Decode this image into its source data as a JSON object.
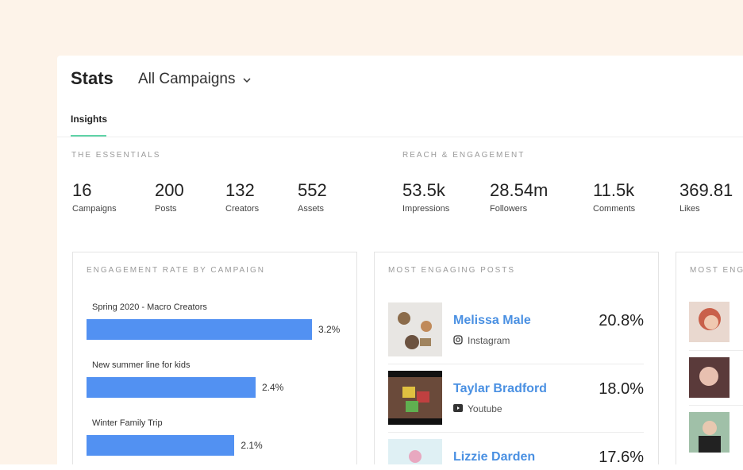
{
  "header": {
    "title": "Stats",
    "filter": "All Campaigns"
  },
  "tabs": [
    "Insights"
  ],
  "essentials": {
    "title": "THE ESSENTIALS",
    "stats": [
      {
        "value": "16",
        "label": "Campaigns"
      },
      {
        "value": "200",
        "label": "Posts"
      },
      {
        "value": "132",
        "label": "Creators"
      },
      {
        "value": "552",
        "label": "Assets"
      }
    ]
  },
  "reach": {
    "title": "REACH & ENGAGEMENT",
    "stats": [
      {
        "value": "53.5k",
        "label": "Impressions"
      },
      {
        "value": "28.54m",
        "label": "Followers"
      },
      {
        "value": "11.5k",
        "label": "Comments"
      },
      {
        "value": "369.81",
        "label": "Likes"
      }
    ]
  },
  "chart_data": {
    "type": "bar",
    "orientation": "horizontal",
    "title": "ENGAGEMENT RATE BY CAMPAIGN",
    "categories": [
      "Spring 2020 - Macro Creators",
      "New summer line for kids",
      "Winter Family Trip"
    ],
    "values": [
      3.2,
      2.4,
      2.1
    ],
    "value_labels": [
      "3.2%",
      "2.4%",
      "2.1%"
    ],
    "color": "#5291f2"
  },
  "posts": {
    "title": "MOST ENGAGING POSTS",
    "items": [
      {
        "name": "Melissa Male",
        "platform": "Instagram",
        "rate": "20.8%"
      },
      {
        "name": "Taylar Bradford",
        "platform": "Youtube",
        "rate": "18.0%"
      },
      {
        "name": "Lizzie Darden",
        "rate": "17.6%"
      }
    ]
  },
  "creators": {
    "title": "MOST ENGA"
  }
}
